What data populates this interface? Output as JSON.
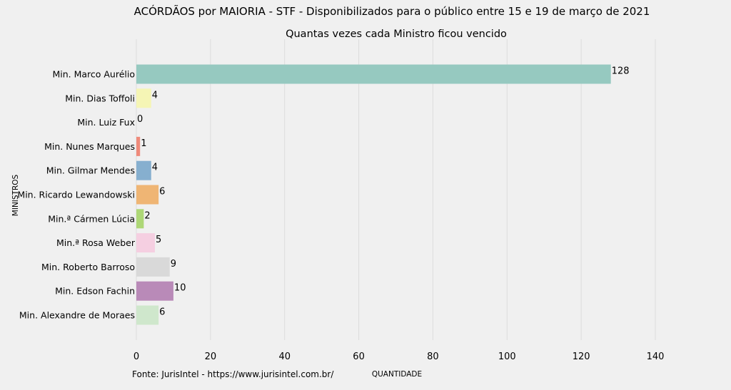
{
  "chart_data": {
    "type": "bar",
    "orientation": "horizontal",
    "title": "ACÓRDÃOS por MAIORIA - STF - Disponibilizados para o público entre 15 e 19 de março de 2021",
    "subtitle": "Quantas vezes cada Ministro ficou vencido",
    "xlabel": "QUANTIDADE",
    "ylabel": "MINISTROS",
    "source": "Fonte: JurisIntel - https://www.jurisintel.com.br/",
    "categories": [
      "Min. Marco Aurélio",
      "Min. Dias Toffoli",
      "Min. Luiz Fux",
      "Min. Nunes Marques",
      "Min. Gilmar Mendes",
      "Min. Ricardo Lewandowski",
      "Min.ª Cármen Lúcia",
      "Min.ª Rosa Weber",
      "Min. Roberto Barroso",
      "Min. Edson Fachin",
      "Min. Alexandre de Moraes"
    ],
    "values": [
      128,
      4,
      0,
      1,
      4,
      6,
      2,
      5,
      9,
      10,
      6
    ],
    "value_labels": [
      "128",
      "4",
      "0",
      "1",
      "4",
      "6",
      "2",
      "5",
      "9",
      "10",
      "6"
    ],
    "colors": [
      "#96c9c0",
      "#f5f5b5",
      "#c2bfd9",
      "#ef8a7a",
      "#86afcf",
      "#efb574",
      "#add776",
      "#f5cfe1",
      "#d9d9d9",
      "#b98ab8",
      "#cfe7cc"
    ],
    "xlim": [
      0,
      140
    ],
    "xticks": [
      0,
      20,
      40,
      60,
      80,
      100,
      120,
      140
    ],
    "xtick_labels": [
      "0",
      "20",
      "40",
      "60",
      "80",
      "100",
      "120",
      "140"
    ],
    "grid": true,
    "legend": "none"
  }
}
